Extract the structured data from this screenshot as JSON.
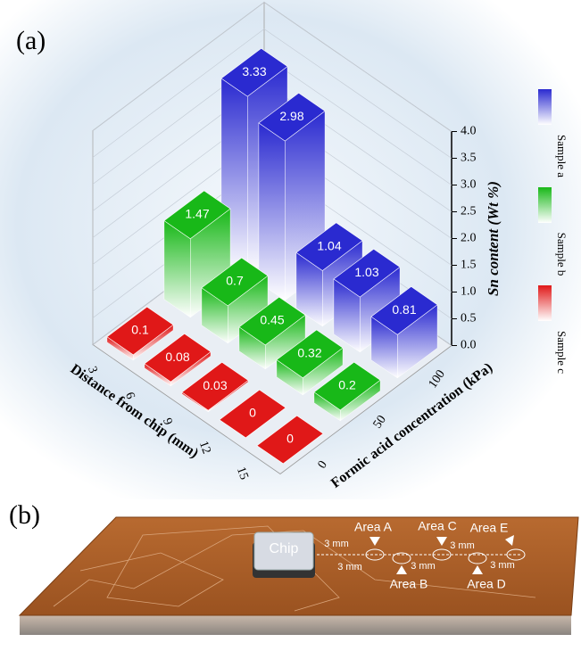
{
  "chart_data": {
    "type": "bar3d",
    "label": "(a)",
    "x_label": "Distance from chip (mm)",
    "depth_label": "Formic acid concentration (kPa)",
    "z_label": "Sn content (Wt %)",
    "categories": [
      3,
      6,
      9,
      12,
      15
    ],
    "depth_categories": [
      0,
      50,
      100
    ],
    "series": [
      {
        "name": "Sample a",
        "color": "#2a2ad0",
        "values": [
          3.33,
          2.98,
          1.04,
          1.03,
          0.81
        ]
      },
      {
        "name": "Sample b",
        "color": "#18b818",
        "values": [
          1.47,
          0.7,
          0.45,
          0.32,
          0.2
        ]
      },
      {
        "name": "Sample c",
        "color": "#e01818",
        "values": [
          0.1,
          0.08,
          0.03,
          0,
          0
        ]
      }
    ],
    "zlim": [
      0,
      4
    ],
    "zticks": [
      {
        "value": 0,
        "label": "0.0"
      },
      0.5,
      {
        "value": 1,
        "label": "1.0"
      },
      1.5,
      {
        "value": 2,
        "label": "2.0"
      },
      2.5,
      {
        "value": 3,
        "label": "3.0"
      },
      3.5,
      {
        "value": 4,
        "label": "4.0"
      }
    ],
    "grid": true
  },
  "diagram": {
    "label": "(b)",
    "chip": "Chip",
    "areas": [
      "Area A",
      "Area B",
      "Area C",
      "Area D",
      "Area E"
    ],
    "spacing_labels": [
      "3 mm",
      "3 mm",
      "3 mm",
      "3 mm",
      "3 mm"
    ]
  }
}
